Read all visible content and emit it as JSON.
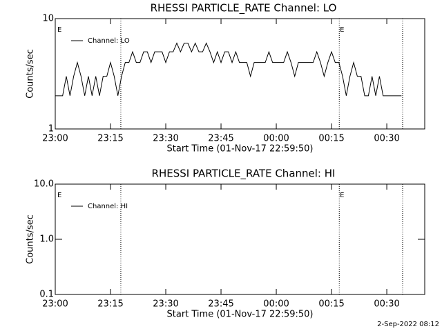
{
  "chart_data": [
    {
      "type": "line",
      "title": "RHESSI PARTICLE_RATE Channel: LO",
      "xlabel": "Start Time (01-Nov-17 22:59:50)",
      "ylabel": "Counts/sec",
      "log_y": true,
      "legend": "upper left",
      "xlim": [
        0,
        100.3
      ],
      "ylim": [
        1,
        10
      ],
      "xticks": [
        {
          "value": 0,
          "label": "23:00"
        },
        {
          "value": 15,
          "label": "23:15"
        },
        {
          "value": 30,
          "label": "23:30"
        },
        {
          "value": 45,
          "label": "23:45"
        },
        {
          "value": 60,
          "label": "00:00"
        },
        {
          "value": 75,
          "label": "00:15"
        },
        {
          "value": 90,
          "label": "00:30"
        }
      ],
      "yticks": [
        1,
        10
      ],
      "vlines": [
        17.8,
        77.1,
        94.3
      ],
      "annotations": [
        {
          "text": "E",
          "x": 0.6
        },
        {
          "text": "E",
          "x": 77.3
        }
      ],
      "x": [
        0,
        1,
        2,
        3,
        4,
        5,
        6,
        7,
        8,
        9,
        10,
        11,
        12,
        13,
        14,
        15,
        16,
        17,
        18,
        19,
        20,
        21,
        22,
        23,
        24,
        25,
        26,
        27,
        28,
        29,
        30,
        31,
        32,
        33,
        34,
        35,
        36,
        37,
        38,
        39,
        40,
        41,
        42,
        43,
        44,
        45,
        46,
        47,
        48,
        49,
        50,
        51,
        52,
        53,
        54,
        55,
        56,
        57,
        58,
        59,
        60,
        61,
        62,
        63,
        64,
        65,
        66,
        67,
        68,
        69,
        70,
        71,
        72,
        73,
        74,
        75,
        76,
        77,
        78,
        79,
        80,
        81,
        82,
        83,
        84,
        85,
        86,
        87,
        88,
        89,
        90,
        91,
        92,
        93,
        94
      ],
      "series": [
        {
          "name": "Channel: LO",
          "color": "#000000",
          "values": [
            2,
            2,
            2,
            3,
            2,
            3,
            4,
            3,
            2,
            3,
            2,
            3,
            2,
            3,
            3,
            4,
            3,
            2,
            3,
            4,
            4,
            5,
            4,
            4,
            5,
            5,
            4,
            5,
            5,
            5,
            4,
            5,
            5,
            6,
            5,
            6,
            6,
            5,
            6,
            5,
            5,
            6,
            5,
            4,
            5,
            4,
            5,
            5,
            4,
            5,
            4,
            4,
            4,
            3,
            4,
            4,
            4,
            4,
            5,
            4,
            4,
            4,
            4,
            5,
            4,
            3,
            4,
            4,
            4,
            4,
            4,
            5,
            4,
            3,
            4,
            5,
            4,
            4,
            3,
            2,
            3,
            4,
            3,
            3,
            2,
            2,
            3,
            2,
            3,
            2,
            2,
            2,
            2,
            2,
            2
          ]
        }
      ]
    },
    {
      "type": "line",
      "title": "RHESSI PARTICLE_RATE Channel: HI",
      "xlabel": "Start Time (01-Nov-17 22:59:50)",
      "ylabel": "Counts/sec",
      "log_y": true,
      "legend": "upper left",
      "xlim": [
        0,
        100.3
      ],
      "ylim": [
        0.1,
        10
      ],
      "xticks": [
        {
          "value": 0,
          "label": "23:00"
        },
        {
          "value": 15,
          "label": "23:15"
        },
        {
          "value": 30,
          "label": "23:30"
        },
        {
          "value": 45,
          "label": "23:45"
        },
        {
          "value": 60,
          "label": "00:00"
        },
        {
          "value": 75,
          "label": "00:15"
        },
        {
          "value": 90,
          "label": "00:30"
        }
      ],
      "yticks": [
        0.1,
        {
          "value": 1,
          "label": "1.0"
        },
        {
          "value": 10,
          "label": "10.0"
        }
      ],
      "vlines": [
        17.8,
        77.1,
        94.3
      ],
      "annotations": [
        {
          "text": "E",
          "x": 0.6
        },
        {
          "text": "E",
          "x": 77.3
        }
      ],
      "x": [],
      "series": [
        {
          "name": "Channel: HI",
          "color": "#000000",
          "values": []
        }
      ]
    }
  ],
  "footer": "2-Sep-2022 08:12"
}
